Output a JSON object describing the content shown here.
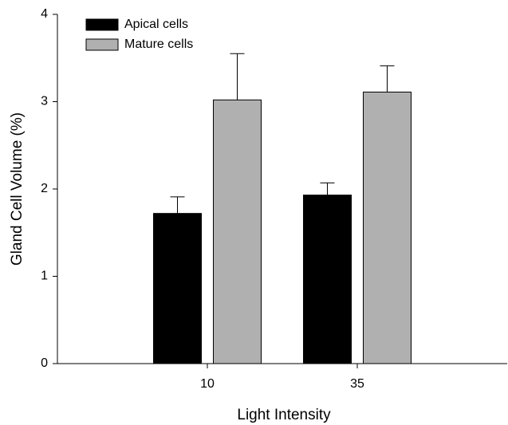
{
  "chart_data": {
    "type": "bar",
    "x_label": "Light Intensity",
    "y_label": "Gland Cell Volume (%)",
    "categories": [
      "10",
      "35"
    ],
    "series": [
      {
        "name": "Apical cells",
        "color": "#000000",
        "values": [
          1.72,
          1.93
        ],
        "errors": [
          0.19,
          0.14
        ]
      },
      {
        "name": "Mature cells",
        "color": "#b0b0b0",
        "values": [
          3.02,
          3.11
        ],
        "errors": [
          0.53,
          0.3
        ]
      }
    ],
    "ylim": [
      0,
      4
    ],
    "yticks": [
      0,
      1,
      2,
      3,
      4
    ],
    "legend": "upper left"
  }
}
